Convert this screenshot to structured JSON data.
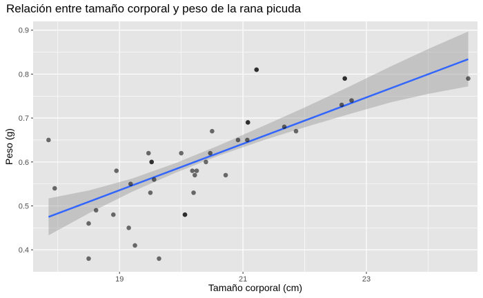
{
  "chart_data": {
    "type": "scatter",
    "title": "Relación entre tamaño corporal y peso de la rana picuda",
    "xlabel": "Tamaño corporal (cm)",
    "ylabel": "Peso (g)",
    "xlim": [
      17.6,
      24.8
    ],
    "ylim": [
      0.35,
      0.92
    ],
    "x_ticks": [
      19,
      21,
      23
    ],
    "x_tick_labels": [
      "19",
      "21",
      "23"
    ],
    "x_minor_ticks": [
      18,
      20,
      22,
      24
    ],
    "y_ticks": [
      0.4,
      0.5,
      0.6,
      0.7,
      0.8,
      0.9
    ],
    "y_tick_labels": [
      "0.4",
      "0.5",
      "0.6",
      "0.7",
      "0.8",
      "0.9"
    ],
    "y_minor_ticks": [
      0.45,
      0.55,
      0.65,
      0.75,
      0.85
    ],
    "grid": true,
    "series": [
      {
        "type": "scatter",
        "points": [
          [
            17.85,
            0.65
          ],
          [
            17.95,
            0.54
          ],
          [
            18.5,
            0.46
          ],
          [
            18.5,
            0.38
          ],
          [
            18.62,
            0.49
          ],
          [
            18.9,
            0.48
          ],
          [
            18.95,
            0.58
          ],
          [
            19.15,
            0.45
          ],
          [
            19.18,
            0.55
          ],
          [
            19.25,
            0.41
          ],
          [
            19.47,
            0.62
          ],
          [
            19.5,
            0.53
          ],
          [
            19.52,
            0.6
          ],
          [
            19.52,
            0.6
          ],
          [
            19.56,
            0.56
          ],
          [
            19.64,
            0.38
          ],
          [
            20.0,
            0.62
          ],
          [
            20.06,
            0.48
          ],
          [
            20.06,
            0.48
          ],
          [
            20.18,
            0.58
          ],
          [
            20.2,
            0.53
          ],
          [
            20.22,
            0.57
          ],
          [
            20.25,
            0.58
          ],
          [
            20.4,
            0.6
          ],
          [
            20.47,
            0.62
          ],
          [
            20.5,
            0.67
          ],
          [
            20.72,
            0.57
          ],
          [
            20.92,
            0.65
          ],
          [
            21.07,
            0.65
          ],
          [
            21.08,
            0.69
          ],
          [
            21.08,
            0.69
          ],
          [
            21.22,
            0.81
          ],
          [
            21.22,
            0.81
          ],
          [
            21.67,
            0.68
          ],
          [
            21.86,
            0.67
          ],
          [
            22.6,
            0.73
          ],
          [
            22.65,
            0.79
          ],
          [
            22.65,
            0.79
          ],
          [
            22.76,
            0.74
          ],
          [
            24.65,
            0.79
          ]
        ]
      },
      {
        "type": "line",
        "name": "",
        "x": [
          17.85,
          24.65
        ],
        "y": [
          0.475,
          0.834
        ]
      }
    ],
    "confidence_band": {
      "x": [
        17.85,
        18.5,
        19.2,
        19.9,
        20.6,
        21.3,
        22.0,
        22.7,
        23.4,
        24.0,
        24.65
      ],
      "lower": [
        0.433,
        0.483,
        0.532,
        0.575,
        0.614,
        0.648,
        0.679,
        0.708,
        0.736,
        0.755,
        0.772
      ],
      "upper": [
        0.517,
        0.535,
        0.562,
        0.597,
        0.637,
        0.68,
        0.724,
        0.77,
        0.818,
        0.857,
        0.897
      ]
    },
    "colors": {
      "panel": "#e5e5e5",
      "grid": "#ffffff",
      "point": "#000000",
      "line": "#3366ff",
      "band": "#999999"
    }
  }
}
